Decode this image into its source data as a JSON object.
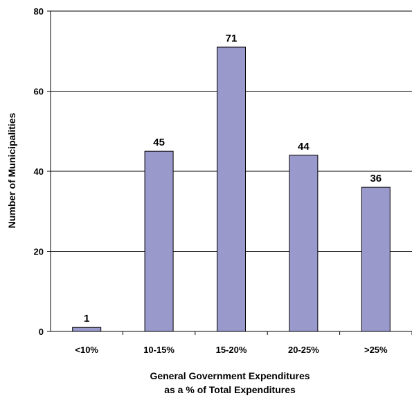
{
  "chart_data": {
    "type": "bar",
    "categories": [
      "<10%",
      "10-15%",
      "15-20%",
      "20-25%",
      ">25%"
    ],
    "values": [
      1,
      45,
      71,
      44,
      36
    ],
    "data_labels": [
      "1",
      "45",
      "71",
      "44",
      "36"
    ],
    "title": "",
    "xlabel_lines": [
      "General Government Expenditures",
      "as a % of Total Expenditures"
    ],
    "ylabel": "Number of Municipalities",
    "ylim": [
      0,
      80
    ],
    "yticks": [
      0,
      20,
      40,
      60,
      80
    ],
    "ytick_labels": [
      "0",
      "20",
      "40",
      "60",
      "80"
    ],
    "grid": true,
    "bar_color": "#9999CC",
    "bar_edge_color": "#000000",
    "gridline_color": "#000000"
  }
}
